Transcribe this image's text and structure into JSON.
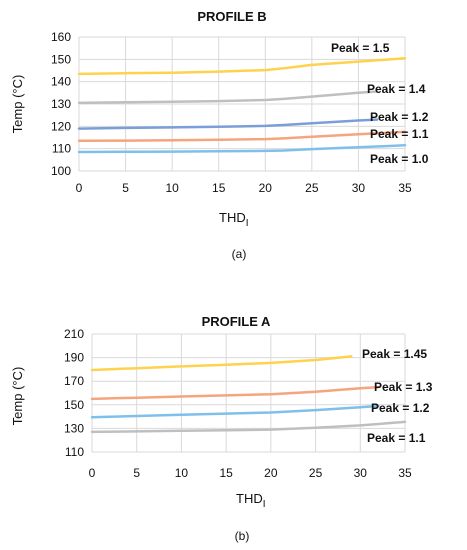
{
  "chart_data": [
    {
      "type": "line",
      "title": "PROFILE B",
      "xlabel": "THD",
      "xlabel_sub": "I",
      "ylabel": "Temp (°C)",
      "caption": "(a)",
      "xlim": [
        0,
        35
      ],
      "ylim": [
        100,
        160
      ],
      "xticks": [
        "0",
        "5",
        "10",
        "15",
        "20",
        "25",
        "30",
        "35"
      ],
      "yticks": [
        "100",
        "110",
        "120",
        "130",
        "140",
        "150",
        "160"
      ],
      "grid": true,
      "series": [
        {
          "label": "Peak = 1.5",
          "color": "#ffd24d",
          "x": [
            0,
            5,
            10,
            15,
            20,
            22,
            25,
            30,
            35
          ],
          "y": [
            143.5,
            143.8,
            144.0,
            144.5,
            145.2,
            146.0,
            147.5,
            149.0,
            150.5
          ]
        },
        {
          "label": "Peak = 1.4",
          "color": "#bfbfbf",
          "x": [
            0,
            5,
            10,
            15,
            20,
            22,
            25,
            30,
            32
          ],
          "y": [
            130.5,
            130.8,
            131.0,
            131.3,
            131.8,
            132.3,
            133.3,
            135.0,
            135.6
          ]
        },
        {
          "label": "Peak = 1.2",
          "color": "#7a9fd8",
          "x": [
            0,
            5,
            10,
            15,
            20,
            22,
            25,
            30,
            32
          ],
          "y": [
            119.0,
            119.3,
            119.5,
            119.8,
            120.2,
            120.6,
            121.4,
            122.6,
            123.0
          ]
        },
        {
          "label": "Peak = 1.1",
          "color": "#f4a57e",
          "x": [
            0,
            5,
            10,
            15,
            20,
            22,
            25,
            30,
            35
          ],
          "y": [
            113.5,
            113.6,
            113.8,
            114.0,
            114.3,
            114.6,
            115.3,
            116.5,
            117.5
          ]
        },
        {
          "label": "Peak = 1.0",
          "color": "#7ec0ea",
          "x": [
            0,
            5,
            10,
            15,
            20,
            22,
            25,
            30,
            35
          ],
          "y": [
            108.5,
            108.6,
            108.7,
            108.8,
            109.0,
            109.2,
            109.8,
            110.6,
            111.5
          ]
        }
      ]
    },
    {
      "type": "line",
      "title": "PROFILE A",
      "xlabel": "THD",
      "xlabel_sub": "I",
      "ylabel": "Temp (°C)",
      "caption": "(b)",
      "xlim": [
        0,
        35
      ],
      "ylim": [
        110,
        210
      ],
      "xticks": [
        "0",
        "5",
        "10",
        "15",
        "20",
        "25",
        "30",
        "35"
      ],
      "yticks": [
        "110",
        "130",
        "150",
        "170",
        "190",
        "210"
      ],
      "grid": true,
      "series": [
        {
          "label": "Peak = 1.45",
          "color": "#ffd24d",
          "x": [
            0,
            5,
            10,
            15,
            20,
            25,
            29
          ],
          "y": [
            179.5,
            181.0,
            182.5,
            184.0,
            185.5,
            188.0,
            191.0
          ]
        },
        {
          "label": "Peak = 1.3",
          "color": "#f4a57e",
          "x": [
            0,
            5,
            10,
            15,
            20,
            25,
            30,
            32
          ],
          "y": [
            155.0,
            156.0,
            157.0,
            158.0,
            159.0,
            161.0,
            164.0,
            165.0
          ]
        },
        {
          "label": "Peak = 1.2",
          "color": "#7ec0ea",
          "x": [
            0,
            5,
            10,
            15,
            20,
            25,
            30,
            32
          ],
          "y": [
            139.5,
            140.5,
            141.5,
            142.5,
            143.5,
            145.5,
            148.0,
            149.0
          ]
        },
        {
          "label": "Peak = 1.1",
          "color": "#bfbfbf",
          "x": [
            0,
            5,
            10,
            15,
            20,
            25,
            30,
            35
          ],
          "y": [
            127.0,
            127.5,
            128.0,
            128.5,
            129.0,
            130.5,
            132.5,
            135.5
          ]
        }
      ]
    }
  ]
}
